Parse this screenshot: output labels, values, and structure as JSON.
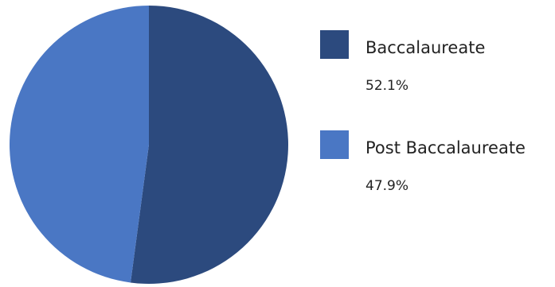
{
  "chart_data": {
    "type": "pie",
    "title": "",
    "slices": [
      {
        "name": "Baccalaureate",
        "value": 52.1,
        "label": "52.1%",
        "color": "#2c4a7e"
      },
      {
        "name": "Post Baccalaureate",
        "value": 47.9,
        "label": "47.9%",
        "color": "#4a77c4"
      }
    ],
    "start_angle": "12 o'clock",
    "direction": "clockwise",
    "legend_position": "right"
  }
}
